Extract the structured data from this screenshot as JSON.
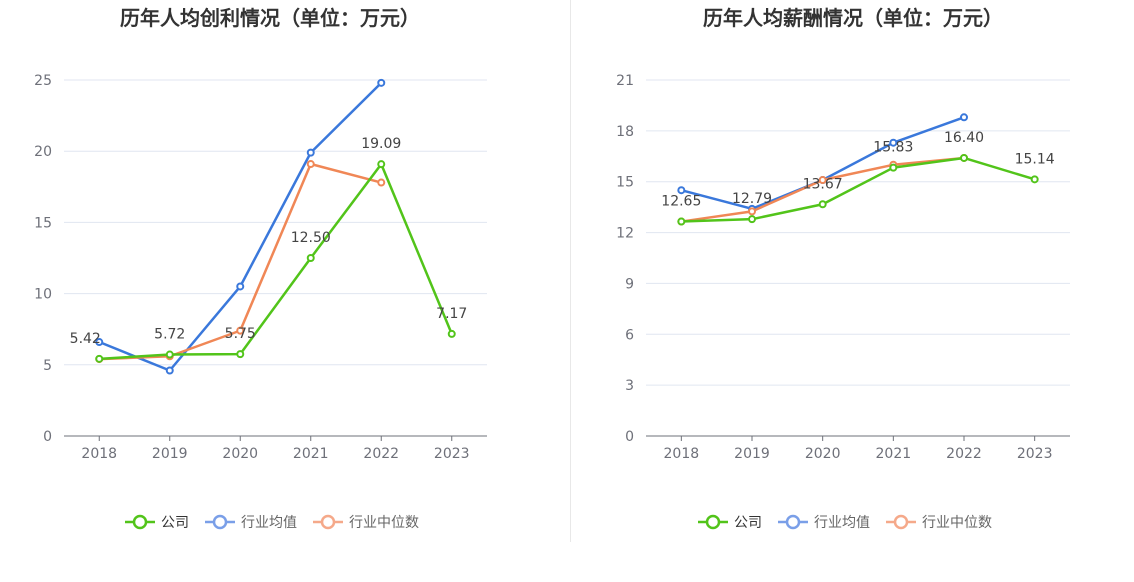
{
  "chart_data": [
    {
      "type": "line",
      "title": "历年人均创利情况（单位：万元）",
      "categories": [
        "2018",
        "2019",
        "2020",
        "2021",
        "2022",
        "2023"
      ],
      "ylim": [
        0,
        25
      ],
      "yticks": [
        0,
        5,
        10,
        15,
        20,
        25
      ],
      "ytick_labels": [
        "0",
        "5",
        "10",
        "15",
        "20",
        "25"
      ],
      "grid": true,
      "legend_position": "bottom-center",
      "series": [
        {
          "name": "公司",
          "color": "#52c41a",
          "values": [
            5.42,
            5.72,
            5.75,
            12.5,
            19.09,
            7.17
          ],
          "labels": [
            "5.42",
            "5.72",
            "5.75",
            "12.50",
            "19.09",
            "7.17"
          ]
        },
        {
          "name": "行业均值",
          "color": "#3a78db",
          "values": [
            6.6,
            4.6,
            10.5,
            19.9,
            24.8,
            null
          ]
        },
        {
          "name": "行业中位数",
          "color": "#f08756",
          "values": [
            5.4,
            5.6,
            7.4,
            19.1,
            17.8,
            null
          ]
        }
      ]
    },
    {
      "type": "line",
      "title": "历年人均薪酬情况（单位：万元）",
      "categories": [
        "2018",
        "2019",
        "2020",
        "2021",
        "2022",
        "2023"
      ],
      "ylim": [
        0,
        21
      ],
      "yticks": [
        0,
        3,
        6,
        9,
        12,
        15,
        18,
        21
      ],
      "ytick_labels": [
        "0",
        "3",
        "6",
        "9",
        "12",
        "15",
        "18",
        "21"
      ],
      "grid": true,
      "legend_position": "bottom-center",
      "series": [
        {
          "name": "公司",
          "color": "#52c41a",
          "values": [
            12.65,
            12.79,
            13.67,
            15.83,
            16.4,
            15.14
          ],
          "labels": [
            "12.65",
            "12.79",
            "13.67",
            "15.83",
            "16.40",
            "15.14"
          ]
        },
        {
          "name": "行业均值",
          "color": "#3a78db",
          "values": [
            14.5,
            13.4,
            15.1,
            17.3,
            18.8,
            null
          ]
        },
        {
          "name": "行业中位数",
          "color": "#f08756",
          "values": [
            12.65,
            13.25,
            15.1,
            16.0,
            16.4,
            null
          ]
        }
      ]
    }
  ],
  "legend_colors": {
    "公司": "#52c41a",
    "行业均值": "#7a9fe8",
    "行业中位数": "#f5a98a"
  },
  "legend_text_colors": {
    "公司": "#333333",
    "行业均值": "#666666",
    "行业中位数": "#666666"
  }
}
